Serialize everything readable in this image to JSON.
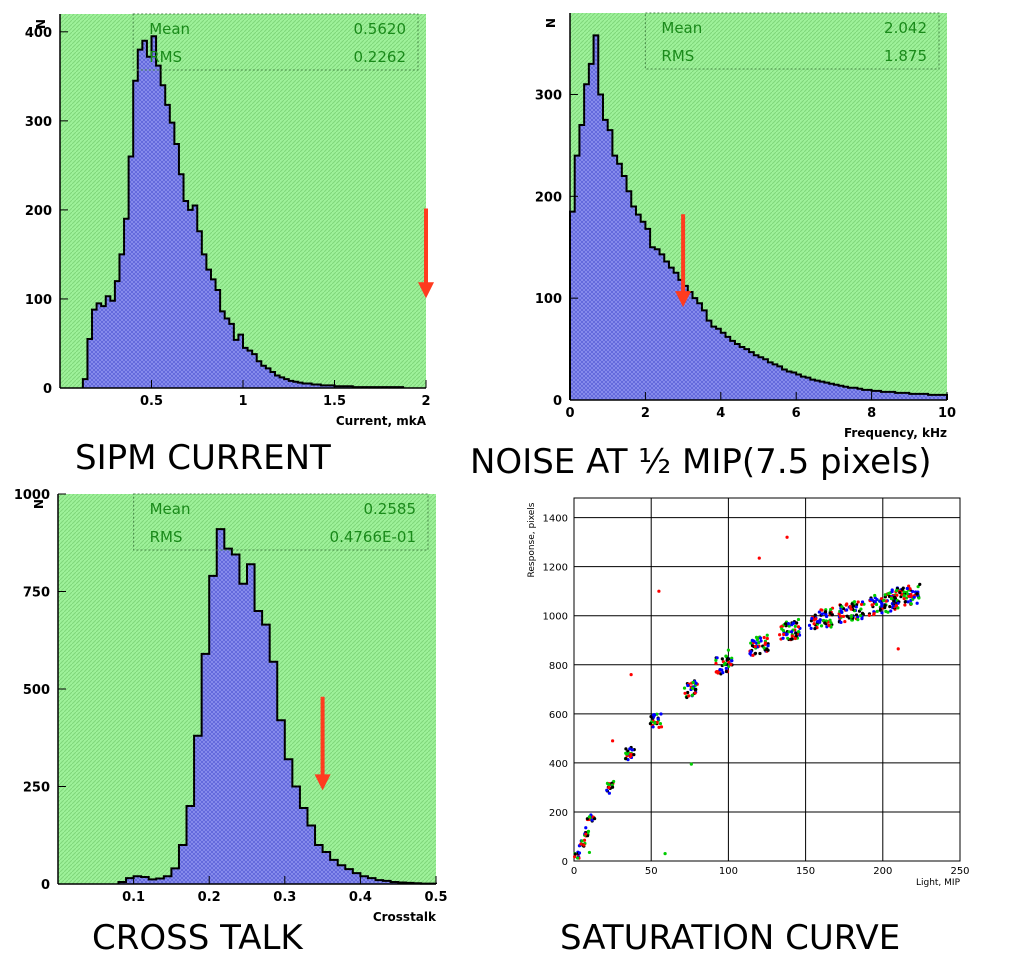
{
  "panels": {
    "sipm": {
      "caption": "SIPM CURRENT",
      "chart_data": {
        "type": "bar",
        "xlabel": "Current, mkA",
        "ylabel": "N",
        "xlim": [
          0,
          2
        ],
        "ylim": [
          0,
          420
        ],
        "xticks": [
          {
            "v": 0.5,
            "t": "0.5"
          },
          {
            "v": 1,
            "t": "1"
          },
          {
            "v": 1.5,
            "t": "1.5"
          },
          {
            "v": 2,
            "t": "2"
          }
        ],
        "yticks": [
          {
            "v": 0,
            "t": "0"
          },
          {
            "v": 100,
            "t": "100"
          },
          {
            "v": 200,
            "t": "200"
          },
          {
            "v": 300,
            "t": "300"
          },
          {
            "v": 400,
            "t": "400"
          }
        ],
        "stats": [
          {
            "label": "Mean",
            "value": "0.5620"
          },
          {
            "label": "RMS",
            "value": "0.2262"
          }
        ],
        "arrow_x": 2.0,
        "bin_start": 0.125,
        "bin_width": 0.025,
        "counts": [
          10,
          55,
          88,
          95,
          92,
          103,
          98,
          120,
          150,
          190,
          260,
          345,
          380,
          390,
          372,
          395,
          362,
          340,
          318,
          298,
          274,
          240,
          210,
          200,
          205,
          176,
          150,
          133,
          122,
          110,
          86,
          78,
          72,
          54,
          60,
          45,
          42,
          38,
          30,
          25,
          22,
          18,
          14,
          12,
          10,
          8,
          7,
          6,
          5,
          5,
          4,
          4,
          3,
          3,
          3,
          2,
          2,
          2,
          2,
          1,
          1,
          1,
          1,
          1,
          1,
          1,
          1,
          1,
          1,
          1
        ]
      }
    },
    "noise": {
      "caption": "NOISE AT ½ MIP(7.5 pixels)",
      "chart_data": {
        "type": "bar",
        "xlabel": "Frequency, kHz",
        "ylabel": "N",
        "xlim": [
          0,
          10
        ],
        "ylim": [
          0,
          380
        ],
        "xticks": [
          {
            "v": 0,
            "t": "0"
          },
          {
            "v": 2,
            "t": "2"
          },
          {
            "v": 4,
            "t": "4"
          },
          {
            "v": 6,
            "t": "6"
          },
          {
            "v": 8,
            "t": "8"
          },
          {
            "v": 10,
            "t": "10"
          }
        ],
        "yticks": [
          {
            "v": 0,
            "t": "0"
          },
          {
            "v": 100,
            "t": "100"
          },
          {
            "v": 200,
            "t": "200"
          },
          {
            "v": 300,
            "t": "300"
          }
        ],
        "stats": [
          {
            "label": "Mean",
            "value": "2.042"
          },
          {
            "label": "RMS",
            "value": "1.875"
          }
        ],
        "arrow_x": 3.0,
        "bin_start": 0.0,
        "bin_width": 0.125,
        "counts": [
          185,
          240,
          270,
          310,
          330,
          358,
          300,
          275,
          265,
          240,
          232,
          220,
          205,
          190,
          182,
          175,
          168,
          150,
          148,
          143,
          136,
          130,
          125,
          118,
          112,
          106,
          100,
          95,
          88,
          78,
          72,
          70,
          66,
          62,
          58,
          55,
          52,
          50,
          47,
          44,
          42,
          40,
          37,
          35,
          33,
          30,
          28,
          27,
          25,
          23,
          22,
          20,
          19,
          18,
          17,
          16,
          15,
          14,
          13,
          12,
          12,
          11,
          10,
          10,
          9,
          9,
          8,
          8,
          8,
          7,
          7,
          7,
          6,
          6,
          6,
          6,
          5,
          5,
          5,
          5
        ]
      }
    },
    "cross": {
      "caption": "CROSS TALK",
      "chart_data": {
        "type": "bar",
        "xlabel": "Crosstalk",
        "ylabel": "N",
        "xlim": [
          0,
          0.5
        ],
        "ylim": [
          0,
          1000
        ],
        "xticks": [
          {
            "v": 0.1,
            "t": "0.1"
          },
          {
            "v": 0.2,
            "t": "0.2"
          },
          {
            "v": 0.3,
            "t": "0.3"
          },
          {
            "v": 0.4,
            "t": "0.4"
          },
          {
            "v": 0.5,
            "t": "0.5"
          }
        ],
        "yticks": [
          {
            "v": 0,
            "t": "0"
          },
          {
            "v": 250,
            "t": "250"
          },
          {
            "v": 500,
            "t": "500"
          },
          {
            "v": 750,
            "t": "750"
          },
          {
            "v": 1000,
            "t": "1000"
          }
        ],
        "stats": [
          {
            "label": "Mean",
            "value": "0.2585"
          },
          {
            "label": "RMS",
            "value": "0.4766E-01"
          }
        ],
        "arrow_x": 0.35,
        "bin_start": 0.08,
        "bin_width": 0.01,
        "counts": [
          5,
          15,
          20,
          18,
          12,
          14,
          20,
          40,
          100,
          200,
          380,
          590,
          790,
          910,
          860,
          845,
          770,
          820,
          700,
          665,
          570,
          420,
          320,
          250,
          195,
          150,
          100,
          82,
          62,
          48,
          38,
          28,
          20,
          15,
          10,
          8,
          5,
          4,
          3,
          2,
          1,
          1
        ]
      }
    },
    "saturation": {
      "caption": "SATURATION CURVE",
      "chart_data": {
        "type": "scatter",
        "xlabel": "Light, MIP",
        "ylabel": "Response, pixels",
        "xlim": [
          0,
          250
        ],
        "ylim": [
          0,
          1480
        ],
        "grid": true,
        "xticks": [
          {
            "v": 0,
            "t": "0"
          },
          {
            "v": 50,
            "t": "50"
          },
          {
            "v": 100,
            "t": "100"
          },
          {
            "v": 150,
            "t": "150"
          },
          {
            "v": 200,
            "t": "200"
          },
          {
            "v": 250,
            "t": "250"
          }
        ],
        "yticks": [
          {
            "v": 0,
            "t": "0"
          },
          {
            "v": 200,
            "t": "200"
          },
          {
            "v": 400,
            "t": "400"
          },
          {
            "v": 600,
            "t": "600"
          },
          {
            "v": 800,
            "t": "800"
          },
          {
            "v": 1000,
            "t": "1000"
          },
          {
            "v": 1200,
            "t": "1200"
          },
          {
            "v": 1400,
            "t": "1400"
          }
        ],
        "series_colors": [
          "#000000",
          "#0000ff",
          "#ff0000",
          "#00cc00"
        ],
        "clusters": [
          {
            "x": 2,
            "y": 20
          },
          {
            "x": 5,
            "y": 70
          },
          {
            "x": 8,
            "y": 120
          },
          {
            "x": 11,
            "y": 170
          },
          {
            "x": 24,
            "y": 300
          },
          {
            "x": 36,
            "y": 440
          },
          {
            "x": 53,
            "y": 570
          },
          {
            "x": 76,
            "y": 700
          },
          {
            "x": 97,
            "y": 800
          },
          {
            "x": 120,
            "y": 880
          },
          {
            "x": 140,
            "y": 940
          },
          {
            "x": 160,
            "y": 985
          },
          {
            "x": 180,
            "y": 1020
          },
          {
            "x": 200,
            "y": 1050
          },
          {
            "x": 215,
            "y": 1080
          }
        ],
        "outliers": [
          {
            "x": 55,
            "y": 1100,
            "c": "#ff0000"
          },
          {
            "x": 120,
            "y": 1235,
            "c": "#ff0000"
          },
          {
            "x": 138,
            "y": 1320,
            "c": "#ff0000"
          },
          {
            "x": 37,
            "y": 760,
            "c": "#ff0000"
          },
          {
            "x": 25,
            "y": 490,
            "c": "#ff0000"
          },
          {
            "x": 76,
            "y": 395,
            "c": "#00cc00"
          },
          {
            "x": 10,
            "y": 35,
            "c": "#00cc00"
          },
          {
            "x": 210,
            "y": 865,
            "c": "#ff0000"
          },
          {
            "x": 59,
            "y": 30,
            "c": "#00cc00"
          },
          {
            "x": 100,
            "y": 860,
            "c": "#00cc00"
          }
        ]
      }
    }
  },
  "colors": {
    "pad": "#9ef29a",
    "hatch": "#7fd67a",
    "hist_fill": "#8e93f0",
    "hist_hatch": "#5c62d8",
    "stat_text": "#1a8a1a",
    "arrow": "#ff3b1f"
  }
}
